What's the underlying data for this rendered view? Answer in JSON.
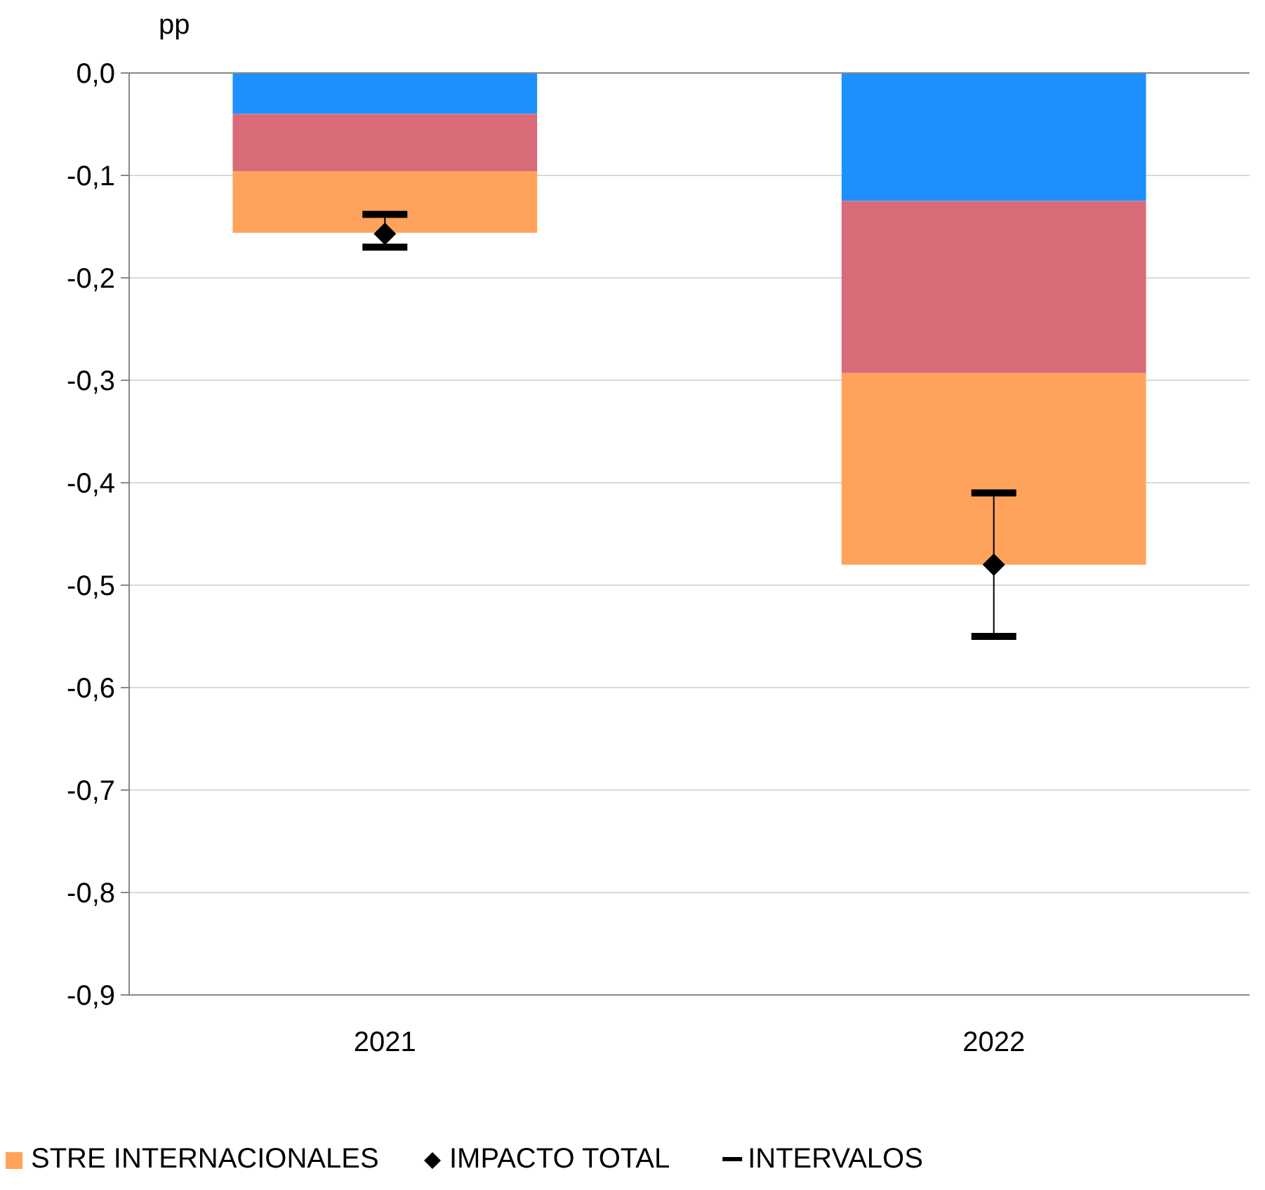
{
  "chart_data": {
    "type": "bar",
    "stacked": true,
    "ylabel": "pp",
    "categories": [
      "2021",
      "2022"
    ],
    "series": [
      {
        "color": "#1e90ff",
        "values": [
          -0.04,
          -0.125
        ]
      },
      {
        "color": "#d96b78",
        "values": [
          -0.056,
          -0.168
        ]
      },
      {
        "name": "STRE INTERNACIONALES",
        "color": "#ffa35c",
        "values": [
          -0.06,
          -0.187
        ]
      },
      {
        "name": "IMPACTO TOTAL",
        "type": "scatter",
        "marker": "diamond",
        "color": "#000000",
        "values": [
          -0.157,
          -0.48
        ],
        "errors": [
          [
            -0.17,
            -0.138
          ],
          [
            -0.55,
            -0.41
          ]
        ]
      }
    ],
    "annotations": [
      "INTERVALOS"
    ],
    "ylim": [
      -0.9,
      0
    ],
    "yticks": [
      {
        "value": 0,
        "label": "0,0"
      },
      {
        "value": -0.1,
        "label": "-0,1"
      },
      {
        "value": -0.2,
        "label": "-0,2"
      },
      {
        "value": -0.3,
        "label": "-0,3"
      },
      {
        "value": -0.4,
        "label": "-0,4"
      },
      {
        "value": -0.5,
        "label": "-0,5"
      },
      {
        "value": -0.6,
        "label": "-0,6"
      },
      {
        "value": -0.7,
        "label": "-0,7"
      },
      {
        "value": -0.8,
        "label": "-0,8"
      },
      {
        "value": -0.9,
        "label": "-0,9"
      }
    ],
    "grid": "y",
    "legend": "bottom"
  }
}
